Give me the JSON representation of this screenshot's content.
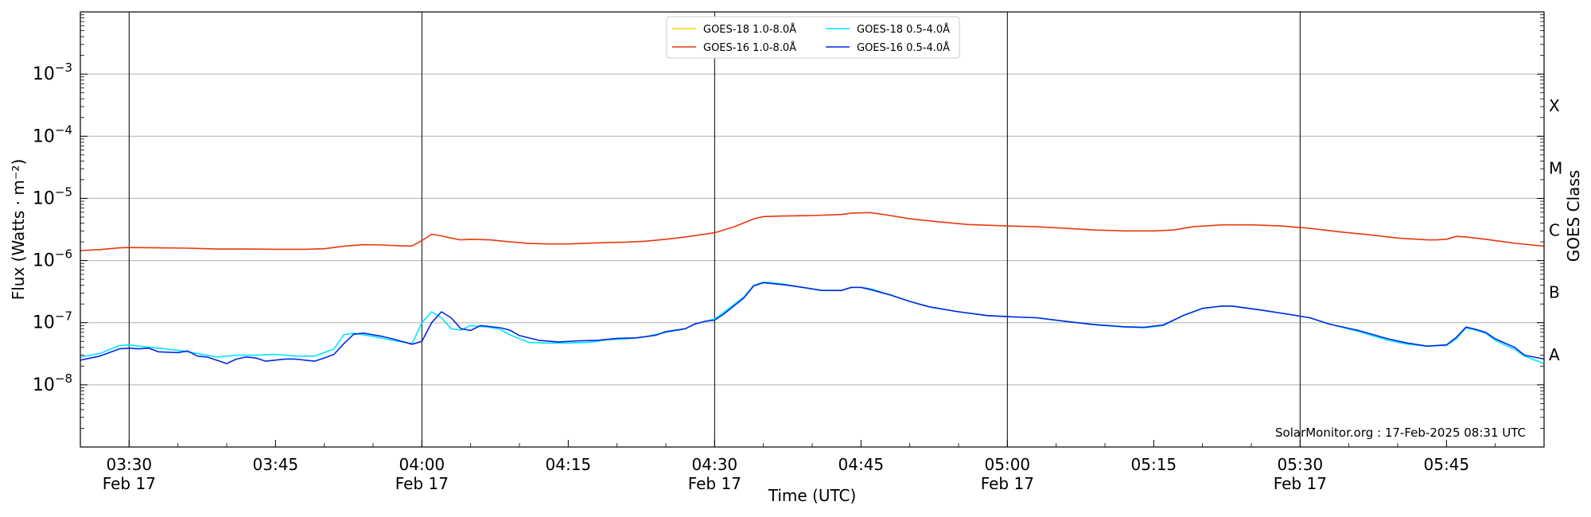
{
  "chart_data": {
    "type": "line",
    "title": "",
    "xlabel": "Time (UTC)",
    "ylabel": "Flux (Watts · m⁻²)",
    "ylabel_right": "GOES Class",
    "y_scale": "log",
    "ylim": [
      1e-09,
      0.01
    ],
    "xlim": [
      "2025-02-17 03:25",
      "2025-02-17 05:55"
    ],
    "grid": "horizontal",
    "x_ticks": [
      {
        "t": "2025-02-17 03:30",
        "label": "03:30",
        "sublabel": "Feb 17"
      },
      {
        "t": "2025-02-17 03:45",
        "label": "03:45",
        "sublabel": ""
      },
      {
        "t": "2025-02-17 04:00",
        "label": "04:00",
        "sublabel": "Feb 17"
      },
      {
        "t": "2025-02-17 04:15",
        "label": "04:15",
        "sublabel": ""
      },
      {
        "t": "2025-02-17 04:30",
        "label": "04:30",
        "sublabel": "Feb 17"
      },
      {
        "t": "2025-02-17 04:45",
        "label": "04:45",
        "sublabel": ""
      },
      {
        "t": "2025-02-17 05:00",
        "label": "05:00",
        "sublabel": "Feb 17"
      },
      {
        "t": "2025-02-17 05:15",
        "label": "05:15",
        "sublabel": ""
      },
      {
        "t": "2025-02-17 05:30",
        "label": "05:30",
        "sublabel": "Feb 17"
      },
      {
        "t": "2025-02-17 05:45",
        "label": "05:45",
        "sublabel": ""
      }
    ],
    "y_ticks": [
      {
        "exp": -8,
        "label_base": "10",
        "label_exp": "−8"
      },
      {
        "exp": -7,
        "label_base": "10",
        "label_exp": "−7"
      },
      {
        "exp": -6,
        "label_base": "10",
        "label_exp": "−6"
      },
      {
        "exp": -5,
        "label_base": "10",
        "label_exp": "−5"
      },
      {
        "exp": -4,
        "label_base": "10",
        "label_exp": "−4"
      },
      {
        "exp": -3,
        "label_base": "10",
        "label_exp": "−3"
      }
    ],
    "class_labels": [
      {
        "label": "A",
        "exp": -7.5
      },
      {
        "label": "B",
        "exp": -6.5
      },
      {
        "label": "C",
        "exp": -5.5
      },
      {
        "label": "M",
        "exp": -4.5
      },
      {
        "label": "X",
        "exp": -3.5
      }
    ],
    "vertical_marker_times": [
      "2025-02-17 03:30",
      "2025-02-17 04:00",
      "2025-02-17 04:30",
      "2025-02-17 05:00",
      "2025-02-17 05:30"
    ],
    "legend_position": "top-center",
    "annotation": "SolarMonitor.org : 17-Feb-2025 08:31 UTC",
    "series": [
      {
        "name": "GOES-18 1.0-8.0Å",
        "color": "#ffd700",
        "points": []
      },
      {
        "name": "GOES-18 0.5-4.0Å",
        "color": "#00e5ff",
        "points": [
          [
            "03:25",
            2.8e-08
          ],
          [
            "03:27",
            3.2e-08
          ],
          [
            "03:28",
            3.7e-08
          ],
          [
            "03:29",
            4.3e-08
          ],
          [
            "03:30",
            4.4e-08
          ],
          [
            "03:31",
            4.2e-08
          ],
          [
            "03:33",
            3.9e-08
          ],
          [
            "03:35",
            3.6e-08
          ],
          [
            "03:37",
            3.2e-08
          ],
          [
            "03:39",
            2.8e-08
          ],
          [
            "03:41",
            3e-08
          ],
          [
            "03:43",
            3e-08
          ],
          [
            "03:45",
            3.1e-08
          ],
          [
            "03:47",
            2.9e-08
          ],
          [
            "03:49",
            2.9e-08
          ],
          [
            "03:51",
            3.8e-08
          ],
          [
            "03:52",
            6.4e-08
          ],
          [
            "03:53",
            6.8e-08
          ],
          [
            "03:55",
            6e-08
          ],
          [
            "03:57",
            5.2e-08
          ],
          [
            "03:59",
            4.6e-08
          ],
          [
            "04:00",
            1e-07
          ],
          [
            "04:01",
            1.5e-07
          ],
          [
            "04:02",
            1.2e-07
          ],
          [
            "04:03",
            8e-08
          ],
          [
            "04:04",
            7.6e-08
          ],
          [
            "04:05",
            9e-08
          ],
          [
            "04:07",
            8.4e-08
          ],
          [
            "04:08",
            7.8e-08
          ],
          [
            "04:09",
            6.4e-08
          ],
          [
            "04:11",
            4.8e-08
          ],
          [
            "04:13",
            4.7e-08
          ],
          [
            "04:15",
            4.7e-08
          ],
          [
            "04:17",
            4.8e-08
          ],
          [
            "04:19",
            5.3e-08
          ],
          [
            "04:21",
            5.5e-08
          ],
          [
            "04:23",
            6e-08
          ],
          [
            "04:25",
            7e-08
          ],
          [
            "04:27",
            8e-08
          ],
          [
            "04:28",
            9.5e-08
          ],
          [
            "04:29",
            1.05e-07
          ],
          [
            "04:30",
            1.15e-07
          ],
          [
            "04:31",
            1.5e-07
          ],
          [
            "04:33",
            2.6e-07
          ],
          [
            "04:34",
            4e-07
          ],
          [
            "04:35",
            4.5e-07
          ],
          [
            "04:37",
            4.2e-07
          ],
          [
            "04:39",
            3.7e-07
          ],
          [
            "04:41",
            3.3e-07
          ],
          [
            "04:43",
            3.3e-07
          ],
          [
            "04:44",
            3.7e-07
          ],
          [
            "04:45",
            3.7e-07
          ],
          [
            "04:46",
            3.5e-07
          ],
          [
            "04:48",
            2.8e-07
          ],
          [
            "04:50",
            2.2e-07
          ],
          [
            "04:52",
            1.8e-07
          ],
          [
            "04:55",
            1.5e-07
          ],
          [
            "04:58",
            1.3e-07
          ],
          [
            "05:00",
            1.25e-07
          ],
          [
            "05:03",
            1.2e-07
          ],
          [
            "05:06",
            1.05e-07
          ],
          [
            "05:09",
            9.2e-08
          ],
          [
            "05:12",
            8.5e-08
          ],
          [
            "05:14",
            8.3e-08
          ],
          [
            "05:16",
            9e-08
          ],
          [
            "05:18",
            1.3e-07
          ],
          [
            "05:20",
            1.7e-07
          ],
          [
            "05:22",
            1.85e-07
          ],
          [
            "05:23",
            1.85e-07
          ],
          [
            "05:26",
            1.6e-07
          ],
          [
            "05:29",
            1.35e-07
          ],
          [
            "05:31",
            1.2e-07
          ],
          [
            "05:33",
            9.5e-08
          ],
          [
            "05:36",
            7.2e-08
          ],
          [
            "05:39",
            5.2e-08
          ],
          [
            "05:41",
            4.5e-08
          ],
          [
            "05:43",
            4.2e-08
          ],
          [
            "05:44",
            4.3e-08
          ],
          [
            "05:45",
            4.3e-08
          ],
          [
            "05:46",
            5.5e-08
          ],
          [
            "05:47",
            8.2e-08
          ],
          [
            "05:48",
            7.6e-08
          ],
          [
            "05:49",
            6.8e-08
          ],
          [
            "05:50",
            5.2e-08
          ],
          [
            "05:52",
            3.7e-08
          ],
          [
            "05:53",
            2.9e-08
          ],
          [
            "05:55",
            2.2e-08
          ]
        ]
      },
      {
        "name": "GOES-16 1.0-8.0Å",
        "color": "#e8380d",
        "points": [
          [
            "03:25",
            1.45e-06
          ],
          [
            "03:27",
            1.5e-06
          ],
          [
            "03:29",
            1.6e-06
          ],
          [
            "03:30",
            1.62e-06
          ],
          [
            "03:33",
            1.6e-06
          ],
          [
            "03:36",
            1.58e-06
          ],
          [
            "03:39",
            1.53e-06
          ],
          [
            "03:42",
            1.53e-06
          ],
          [
            "03:45",
            1.52e-06
          ],
          [
            "03:48",
            1.52e-06
          ],
          [
            "03:50",
            1.55e-06
          ],
          [
            "03:52",
            1.7e-06
          ],
          [
            "03:54",
            1.8e-06
          ],
          [
            "03:56",
            1.78e-06
          ],
          [
            "03:58",
            1.72e-06
          ],
          [
            "03:59",
            1.72e-06
          ],
          [
            "04:00",
            2.1e-06
          ],
          [
            "04:01",
            2.65e-06
          ],
          [
            "04:02",
            2.5e-06
          ],
          [
            "04:03",
            2.3e-06
          ],
          [
            "04:04",
            2.15e-06
          ],
          [
            "04:05",
            2.2e-06
          ],
          [
            "04:07",
            2.15e-06
          ],
          [
            "04:09",
            2e-06
          ],
          [
            "04:11",
            1.88e-06
          ],
          [
            "04:13",
            1.85e-06
          ],
          [
            "04:15",
            1.85e-06
          ],
          [
            "04:17",
            1.9e-06
          ],
          [
            "04:19",
            1.95e-06
          ],
          [
            "04:21",
            1.98e-06
          ],
          [
            "04:23",
            2.05e-06
          ],
          [
            "04:25",
            2.2e-06
          ],
          [
            "04:27",
            2.4e-06
          ],
          [
            "04:30",
            2.8e-06
          ],
          [
            "04:32",
            3.5e-06
          ],
          [
            "04:34",
            4.7e-06
          ],
          [
            "04:35",
            5.1e-06
          ],
          [
            "04:37",
            5.2e-06
          ],
          [
            "04:40",
            5.3e-06
          ],
          [
            "04:43",
            5.5e-06
          ],
          [
            "04:44",
            5.8e-06
          ],
          [
            "04:46",
            5.9e-06
          ],
          [
            "04:48",
            5.3e-06
          ],
          [
            "04:50",
            4.7e-06
          ],
          [
            "04:53",
            4.2e-06
          ],
          [
            "04:56",
            3.8e-06
          ],
          [
            "05:00",
            3.6e-06
          ],
          [
            "05:03",
            3.5e-06
          ],
          [
            "05:06",
            3.3e-06
          ],
          [
            "05:09",
            3.1e-06
          ],
          [
            "05:12",
            3e-06
          ],
          [
            "05:15",
            3e-06
          ],
          [
            "05:17",
            3.1e-06
          ],
          [
            "05:19",
            3.5e-06
          ],
          [
            "05:22",
            3.75e-06
          ],
          [
            "05:25",
            3.75e-06
          ],
          [
            "05:28",
            3.6e-06
          ],
          [
            "05:31",
            3.3e-06
          ],
          [
            "05:34",
            2.9e-06
          ],
          [
            "05:37",
            2.6e-06
          ],
          [
            "05:40",
            2.3e-06
          ],
          [
            "05:43",
            2.15e-06
          ],
          [
            "05:44",
            2.15e-06
          ],
          [
            "05:45",
            2.2e-06
          ],
          [
            "05:46",
            2.45e-06
          ],
          [
            "05:47",
            2.4e-06
          ],
          [
            "05:49",
            2.2e-06
          ],
          [
            "05:52",
            1.9e-06
          ],
          [
            "05:55",
            1.7e-06
          ]
        ]
      },
      {
        "name": "GOES-16 0.5-4.0Å",
        "color": "#0028e0",
        "points": [
          [
            "03:25",
            2.5e-08
          ],
          [
            "03:27",
            2.9e-08
          ],
          [
            "03:29",
            3.8e-08
          ],
          [
            "03:30",
            3.9e-08
          ],
          [
            "03:31",
            3.8e-08
          ],
          [
            "03:32",
            3.9e-08
          ],
          [
            "03:33",
            3.4e-08
          ],
          [
            "03:35",
            3.3e-08
          ],
          [
            "03:36",
            3.5e-08
          ],
          [
            "03:37",
            2.9e-08
          ],
          [
            "03:38",
            2.8e-08
          ],
          [
            "03:40",
            2.2e-08
          ],
          [
            "03:41",
            2.6e-08
          ],
          [
            "03:42",
            2.8e-08
          ],
          [
            "03:43",
            2.7e-08
          ],
          [
            "03:44",
            2.4e-08
          ],
          [
            "03:46",
            2.6e-08
          ],
          [
            "03:47",
            2.6e-08
          ],
          [
            "03:49",
            2.4e-08
          ],
          [
            "03:50",
            2.7e-08
          ],
          [
            "03:51",
            3.1e-08
          ],
          [
            "03:52",
            4.6e-08
          ],
          [
            "03:53",
            6.5e-08
          ],
          [
            "03:54",
            6.8e-08
          ],
          [
            "03:56",
            6e-08
          ],
          [
            "03:57",
            5.5e-08
          ],
          [
            "03:59",
            4.5e-08
          ],
          [
            "04:00",
            5e-08
          ],
          [
            "04:01",
            1e-07
          ],
          [
            "04:02",
            1.5e-07
          ],
          [
            "04:03",
            1.2e-07
          ],
          [
            "04:04",
            8e-08
          ],
          [
            "04:05",
            7.5e-08
          ],
          [
            "04:06",
            9e-08
          ],
          [
            "04:08",
            8.3e-08
          ],
          [
            "04:09",
            7.6e-08
          ],
          [
            "04:10",
            6.2e-08
          ],
          [
            "04:12",
            5.2e-08
          ],
          [
            "04:14",
            4.9e-08
          ],
          [
            "04:16",
            5.1e-08
          ],
          [
            "04:18",
            5.2e-08
          ],
          [
            "04:20",
            5.6e-08
          ],
          [
            "04:22",
            5.7e-08
          ],
          [
            "04:24",
            6.3e-08
          ],
          [
            "04:25",
            7.2e-08
          ],
          [
            "04:27",
            8e-08
          ],
          [
            "04:28",
            9.6e-08
          ],
          [
            "04:29",
            1.05e-07
          ],
          [
            "04:30",
            1.1e-07
          ],
          [
            "04:31",
            1.4e-07
          ],
          [
            "04:33",
            2.5e-07
          ],
          [
            "04:34",
            3.9e-07
          ],
          [
            "04:35",
            4.4e-07
          ],
          [
            "04:37",
            4.1e-07
          ],
          [
            "04:39",
            3.7e-07
          ],
          [
            "04:41",
            3.3e-07
          ],
          [
            "04:43",
            3.3e-07
          ],
          [
            "04:44",
            3.7e-07
          ],
          [
            "04:45",
            3.7e-07
          ],
          [
            "04:46",
            3.4e-07
          ],
          [
            "04:48",
            2.8e-07
          ],
          [
            "04:50",
            2.2e-07
          ],
          [
            "04:52",
            1.8e-07
          ],
          [
            "04:55",
            1.5e-07
          ],
          [
            "04:58",
            1.3e-07
          ],
          [
            "05:00",
            1.25e-07
          ],
          [
            "05:03",
            1.2e-07
          ],
          [
            "05:06",
            1.05e-07
          ],
          [
            "05:09",
            9.3e-08
          ],
          [
            "05:12",
            8.6e-08
          ],
          [
            "05:14",
            8.4e-08
          ],
          [
            "05:16",
            9.2e-08
          ],
          [
            "05:18",
            1.3e-07
          ],
          [
            "05:20",
            1.7e-07
          ],
          [
            "05:22",
            1.85e-07
          ],
          [
            "05:23",
            1.85e-07
          ],
          [
            "05:26",
            1.6e-07
          ],
          [
            "05:29",
            1.35e-07
          ],
          [
            "05:31",
            1.2e-07
          ],
          [
            "05:33",
            9.5e-08
          ],
          [
            "05:36",
            7.5e-08
          ],
          [
            "05:39",
            5.5e-08
          ],
          [
            "05:41",
            4.7e-08
          ],
          [
            "05:43",
            4.2e-08
          ],
          [
            "05:44",
            4.3e-08
          ],
          [
            "05:45",
            4.4e-08
          ],
          [
            "05:46",
            5.8e-08
          ],
          [
            "05:47",
            8.5e-08
          ],
          [
            "05:48",
            7.8e-08
          ],
          [
            "05:49",
            7e-08
          ],
          [
            "05:50",
            5.5e-08
          ],
          [
            "05:52",
            4e-08
          ],
          [
            "05:53",
            3e-08
          ],
          [
            "05:55",
            2.6e-08
          ]
        ]
      }
    ]
  }
}
